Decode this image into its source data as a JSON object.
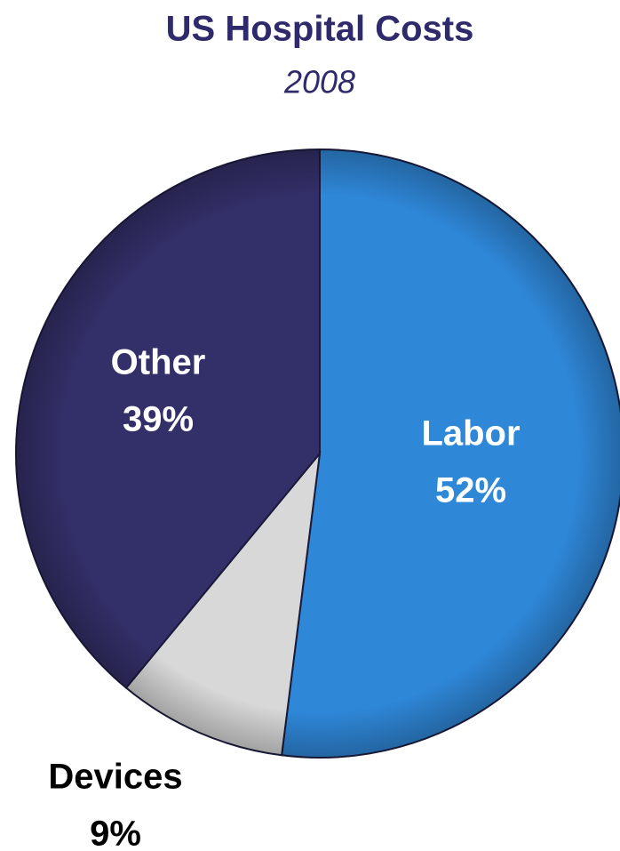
{
  "chart_data": {
    "type": "pie",
    "title": "US Hospital Costs",
    "subtitle": "2008",
    "categories": [
      "Labor",
      "Devices",
      "Other"
    ],
    "values": [
      52,
      9,
      39
    ],
    "value_labels": [
      "52%",
      "9%",
      "39%"
    ],
    "colors": [
      "#2f87d8",
      "#d8d8d8",
      "#332f68"
    ]
  }
}
